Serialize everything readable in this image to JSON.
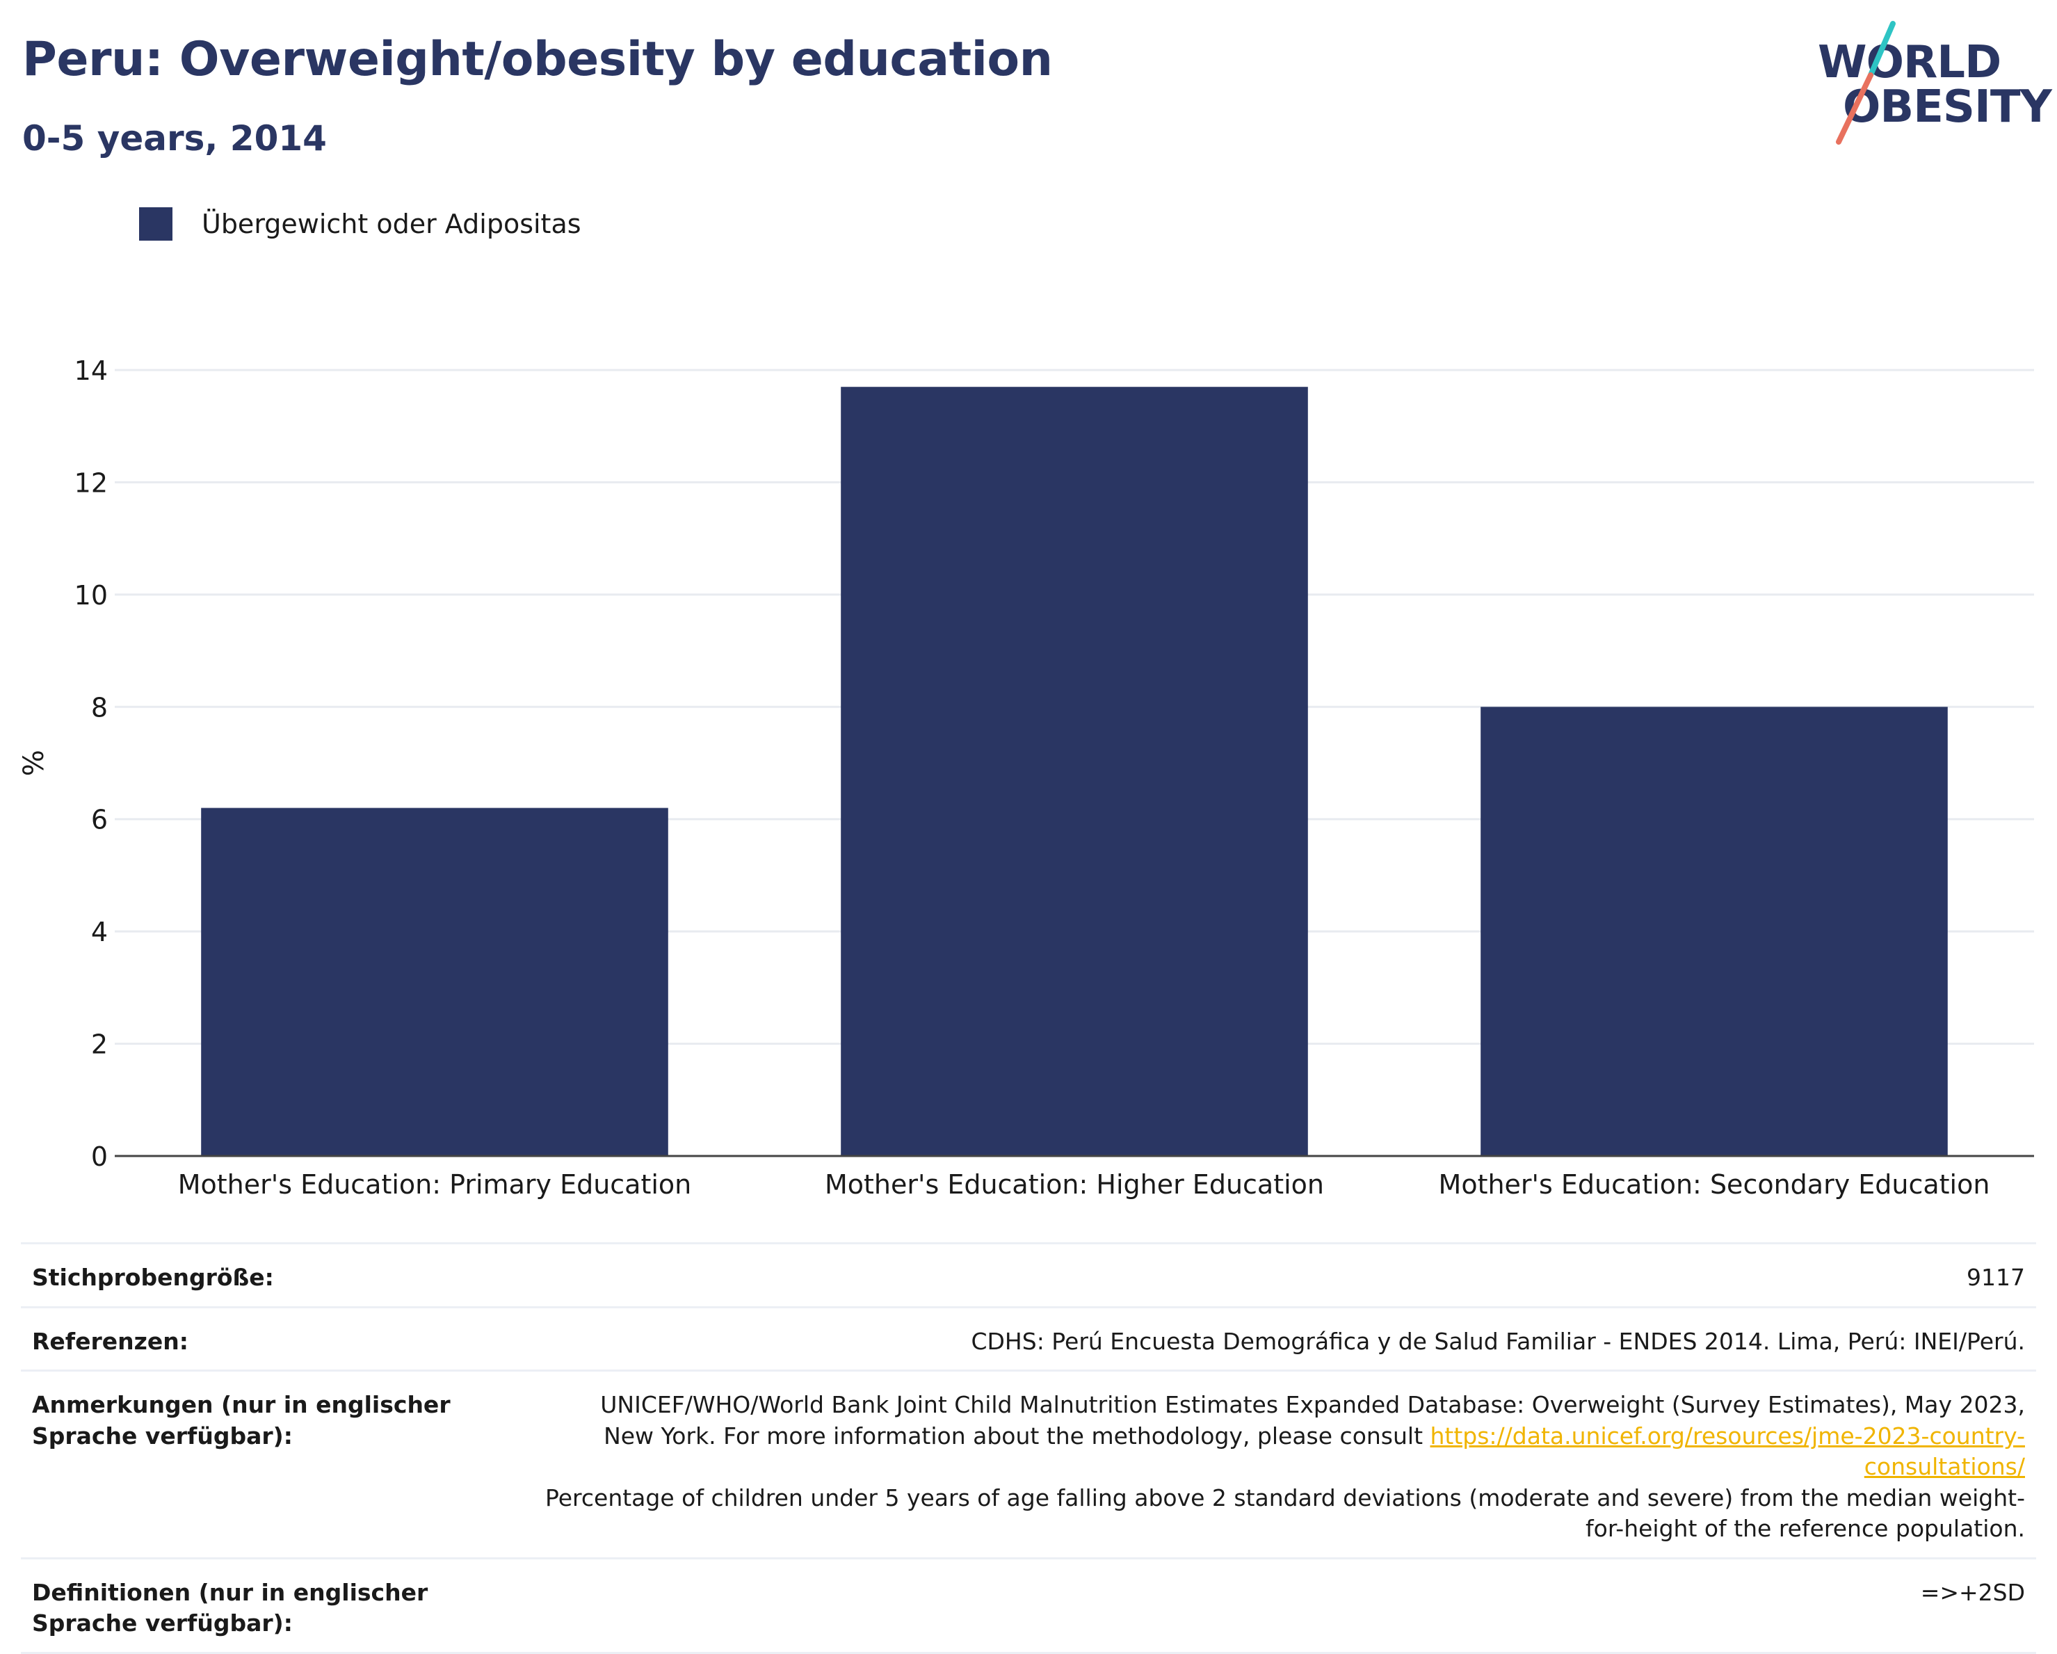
{
  "title": "Peru: Overweight/obesity by education",
  "subtitle": "0-5 years, 2014",
  "logo": {
    "line1": "WORLD",
    "line2": "OBESITY"
  },
  "colors": {
    "bar": "#2a3663",
    "title": "#2a3663",
    "link": "#f0b400",
    "logo_teal": "#2ec4c4",
    "logo_coral": "#e8715e"
  },
  "chart_data": {
    "type": "bar",
    "categories": [
      "Mother's Education: Primary Education",
      "Mother's Education: Higher Education",
      "Mother's Education: Secondary Education"
    ],
    "series": [
      {
        "name": "Übergewicht oder Adipositas",
        "values": [
          6.2,
          13.7,
          8.0
        ]
      }
    ],
    "ylabel": "%",
    "ylim": [
      0,
      14
    ],
    "yticks": [
      0,
      2,
      4,
      6,
      8,
      10,
      12,
      14
    ],
    "grid": true,
    "legend": "top-left"
  },
  "table": {
    "sample": {
      "label": "Stichprobengröße:",
      "value": "9117"
    },
    "references": {
      "label": "Referenzen:",
      "value": "CDHS: Perú Encuesta Demográfica y de Salud Familiar - ENDES 2014. Lima, Perú: INEI/Perú."
    },
    "notes": {
      "label": "Anmerkungen (nur in englischer Sprache verfügbar):",
      "text1": "UNICEF/WHO/World Bank Joint Child Malnutrition Estimates Expanded Database: Overweight (Survey Estimates), May 2023, New York. For more information about the methodology, please consult ",
      "link": "https://data.unicef.org/resources/jme-2023-country-consultations/",
      "text2": "Percentage of children under 5 years of age falling above 2 standard deviations (moderate and severe) from the median weight-for-height of the reference population."
    },
    "definitions": {
      "label": "Definitionen (nur in englischer Sprache verfügbar):",
      "value": "=>+2SD"
    }
  }
}
